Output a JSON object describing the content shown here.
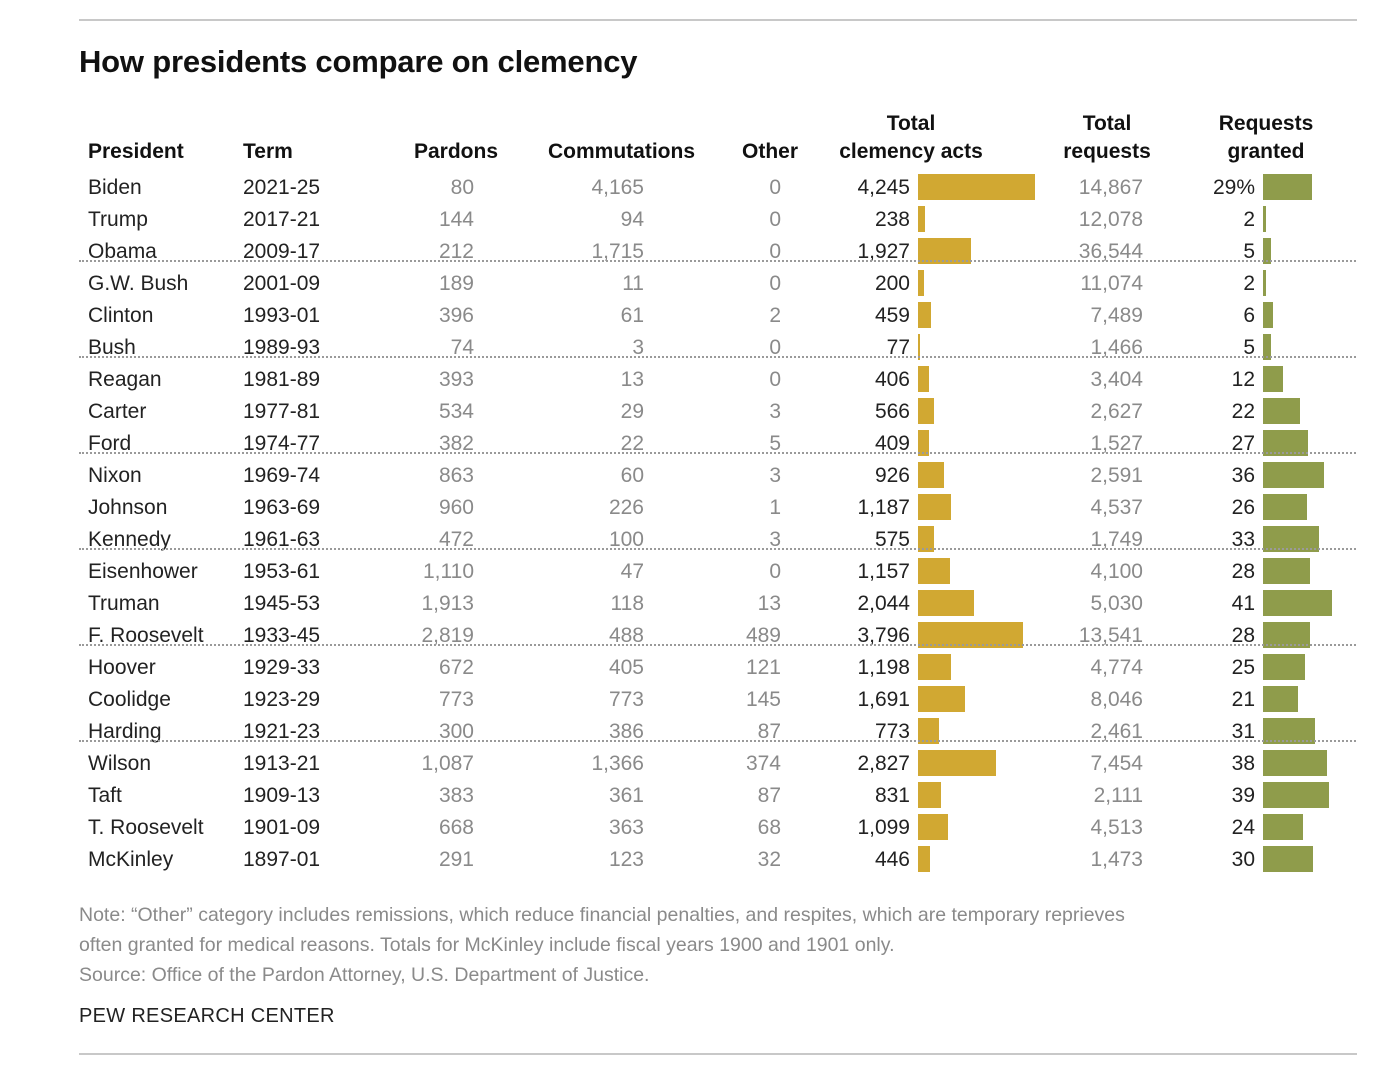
{
  "title": "How presidents compare on clemency",
  "headers": {
    "president": "President",
    "term": "Term",
    "pardons": "Pardons",
    "commutations": "Commutations",
    "other": "Other",
    "total_acts_line1": "Total",
    "total_acts_line2": "clemency acts",
    "total_requests_line1": "Total",
    "total_requests_line2": "requests",
    "granted_line1": "Requests",
    "granted_line2": "granted"
  },
  "chart_data": {
    "type": "table",
    "columns": [
      "President",
      "Term",
      "Pardons",
      "Commutations",
      "Other",
      "Total clemency acts",
      "Total requests",
      "Requests granted"
    ],
    "rows": [
      {
        "president": "Biden",
        "term": "2021-25",
        "pardons": "80",
        "commutations": "4,165",
        "other": "0",
        "total": "4,245",
        "total_value": 4245,
        "requests": "14,867",
        "granted": "29%",
        "granted_value": 29
      },
      {
        "president": "Trump",
        "term": "2017-21",
        "pardons": "144",
        "commutations": "94",
        "other": "0",
        "total": "238",
        "total_value": 238,
        "requests": "12,078",
        "granted": "2",
        "granted_value": 2
      },
      {
        "president": "Obama",
        "term": "2009-17",
        "pardons": "212",
        "commutations": "1,715",
        "other": "0",
        "total": "1,927",
        "total_value": 1927,
        "requests": "36,544",
        "granted": "5",
        "granted_value": 5
      },
      {
        "president": "G.W. Bush",
        "term": "2001-09",
        "pardons": "189",
        "commutations": "11",
        "other": "0",
        "total": "200",
        "total_value": 200,
        "requests": "11,074",
        "granted": "2",
        "granted_value": 2
      },
      {
        "president": "Clinton",
        "term": "1993-01",
        "pardons": "396",
        "commutations": "61",
        "other": "2",
        "total": "459",
        "total_value": 459,
        "requests": "7,489",
        "granted": "6",
        "granted_value": 6
      },
      {
        "president": "Bush",
        "term": "1989-93",
        "pardons": "74",
        "commutations": "3",
        "other": "0",
        "total": "77",
        "total_value": 77,
        "requests": "1,466",
        "granted": "5",
        "granted_value": 5
      },
      {
        "president": "Reagan",
        "term": "1981-89",
        "pardons": "393",
        "commutations": "13",
        "other": "0",
        "total": "406",
        "total_value": 406,
        "requests": "3,404",
        "granted": "12",
        "granted_value": 12
      },
      {
        "president": "Carter",
        "term": "1977-81",
        "pardons": "534",
        "commutations": "29",
        "other": "3",
        "total": "566",
        "total_value": 566,
        "requests": "2,627",
        "granted": "22",
        "granted_value": 22
      },
      {
        "president": "Ford",
        "term": "1974-77",
        "pardons": "382",
        "commutations": "22",
        "other": "5",
        "total": "409",
        "total_value": 409,
        "requests": "1,527",
        "granted": "27",
        "granted_value": 27
      },
      {
        "president": "Nixon",
        "term": "1969-74",
        "pardons": "863",
        "commutations": "60",
        "other": "3",
        "total": "926",
        "total_value": 926,
        "requests": "2,591",
        "granted": "36",
        "granted_value": 36
      },
      {
        "president": "Johnson",
        "term": "1963-69",
        "pardons": "960",
        "commutations": "226",
        "other": "1",
        "total": "1,187",
        "total_value": 1187,
        "requests": "4,537",
        "granted": "26",
        "granted_value": 26
      },
      {
        "president": "Kennedy",
        "term": "1961-63",
        "pardons": "472",
        "commutations": "100",
        "other": "3",
        "total": "575",
        "total_value": 575,
        "requests": "1,749",
        "granted": "33",
        "granted_value": 33
      },
      {
        "president": "Eisenhower",
        "term": "1953-61",
        "pardons": "1,110",
        "commutations": "47",
        "other": "0",
        "total": "1,157",
        "total_value": 1157,
        "requests": "4,100",
        "granted": "28",
        "granted_value": 28
      },
      {
        "president": "Truman",
        "term": "1945-53",
        "pardons": "1,913",
        "commutations": "118",
        "other": "13",
        "total": "2,044",
        "total_value": 2044,
        "requests": "5,030",
        "granted": "41",
        "granted_value": 41
      },
      {
        "president": "F. Roosevelt",
        "term": "1933-45",
        "pardons": "2,819",
        "commutations": "488",
        "other": "489",
        "total": "3,796",
        "total_value": 3796,
        "requests": "13,541",
        "granted": "28",
        "granted_value": 28
      },
      {
        "president": "Hoover",
        "term": "1929-33",
        "pardons": "672",
        "commutations": "405",
        "other": "121",
        "total": "1,198",
        "total_value": 1198,
        "requests": "4,774",
        "granted": "25",
        "granted_value": 25
      },
      {
        "president": "Coolidge",
        "term": "1923-29",
        "pardons": "773",
        "commutations": "773",
        "other": "145",
        "total": "1,691",
        "total_value": 1691,
        "requests": "8,046",
        "granted": "21",
        "granted_value": 21
      },
      {
        "president": "Harding",
        "term": "1921-23",
        "pardons": "300",
        "commutations": "386",
        "other": "87",
        "total": "773",
        "total_value": 773,
        "requests": "2,461",
        "granted": "31",
        "granted_value": 31
      },
      {
        "president": "Wilson",
        "term": "1913-21",
        "pardons": "1,087",
        "commutations": "1,366",
        "other": "374",
        "total": "2,827",
        "total_value": 2827,
        "requests": "7,454",
        "granted": "38",
        "granted_value": 38
      },
      {
        "president": "Taft",
        "term": "1909-13",
        "pardons": "383",
        "commutations": "361",
        "other": "87",
        "total": "831",
        "total_value": 831,
        "requests": "2,111",
        "granted": "39",
        "granted_value": 39
      },
      {
        "president": "T. Roosevelt",
        "term": "1901-09",
        "pardons": "668",
        "commutations": "363",
        "other": "68",
        "total": "1,099",
        "total_value": 1099,
        "requests": "4,513",
        "granted": "24",
        "granted_value": 24
      },
      {
        "president": "McKinley",
        "term": "1897-01",
        "pardons": "291",
        "commutations": "123",
        "other": "32",
        "total": "446",
        "total_value": 446,
        "requests": "1,473",
        "granted": "30",
        "granted_value": 30
      }
    ],
    "separator_after": [
      2,
      5,
      8,
      11,
      14,
      17
    ],
    "bar_colors": {
      "total_acts": "#d1a832",
      "granted": "#8f9c4b"
    }
  },
  "notes": {
    "line1": "Note: “Other” category includes remissions, which reduce financial penalties, and respites, which are temporary reprieves",
    "line2": "often granted for medical reasons. Totals for McKinley include fiscal years 1900 and 1901 only.",
    "source": "Source: Office of the Pardon Attorney, U.S. Department of Justice."
  },
  "brand": "PEW RESEARCH CENTER"
}
